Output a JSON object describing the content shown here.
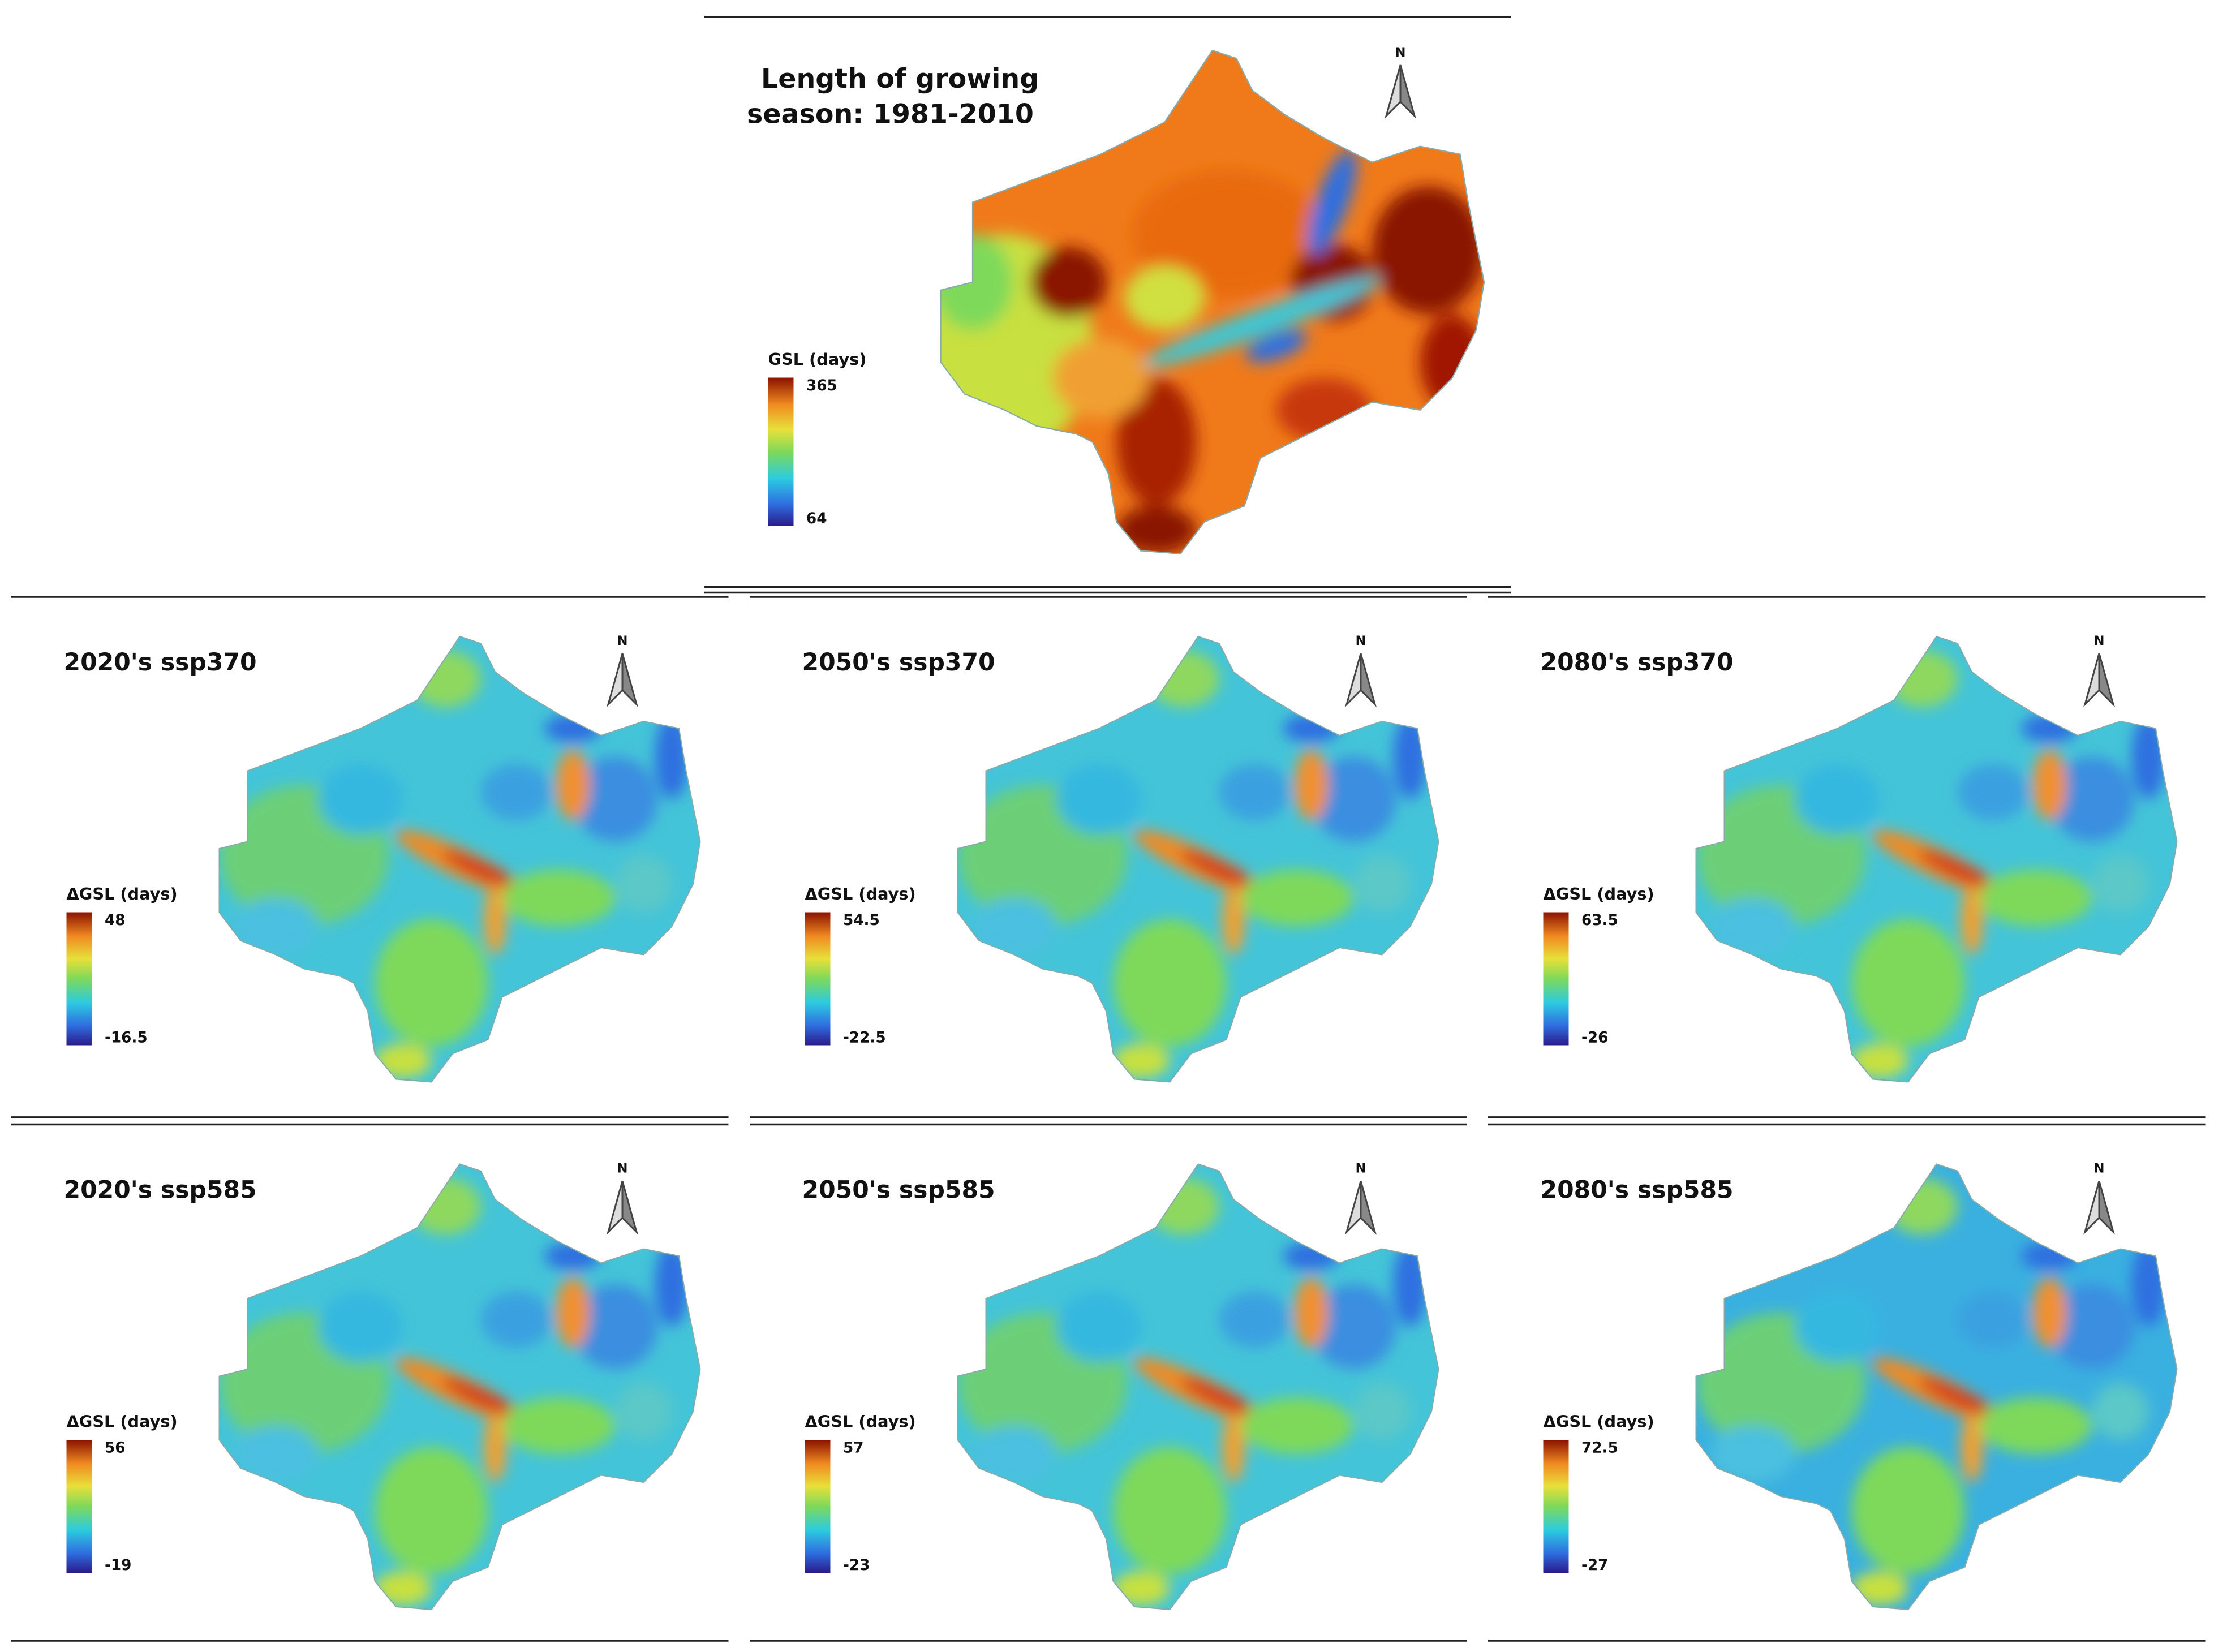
{
  "top": {
    "title_lines": [
      "Length of growing",
      "season: 1981-2010"
    ],
    "legend_title": "GSL (days)",
    "legend_max": 365,
    "legend_min": 64,
    "north": "N"
  },
  "panels": [
    {
      "title": "2020's ssp370",
      "legend_title": "ΔGSL (days)",
      "legend_max": 48,
      "legend_min": -16.5,
      "north": "N"
    },
    {
      "title": "2050's ssp370",
      "legend_title": "ΔGSL (days)",
      "legend_max": 54.5,
      "legend_min": -22.5,
      "north": "N"
    },
    {
      "title": "2080's ssp370",
      "legend_title": "ΔGSL (days)",
      "legend_max": 63.5,
      "legend_min": -26,
      "north": "N"
    },
    {
      "title": "2020's ssp585",
      "legend_title": "ΔGSL (days)",
      "legend_max": 56,
      "legend_min": -19,
      "north": "N"
    },
    {
      "title": "2050's ssp585",
      "legend_title": "ΔGSL (days)",
      "legend_max": 57,
      "legend_min": -23,
      "north": "N"
    },
    {
      "title": "2080's ssp585",
      "legend_title": "ΔGSL (days)",
      "legend_max": 72.5,
      "legend_min": -27,
      "north": "N"
    }
  ]
}
